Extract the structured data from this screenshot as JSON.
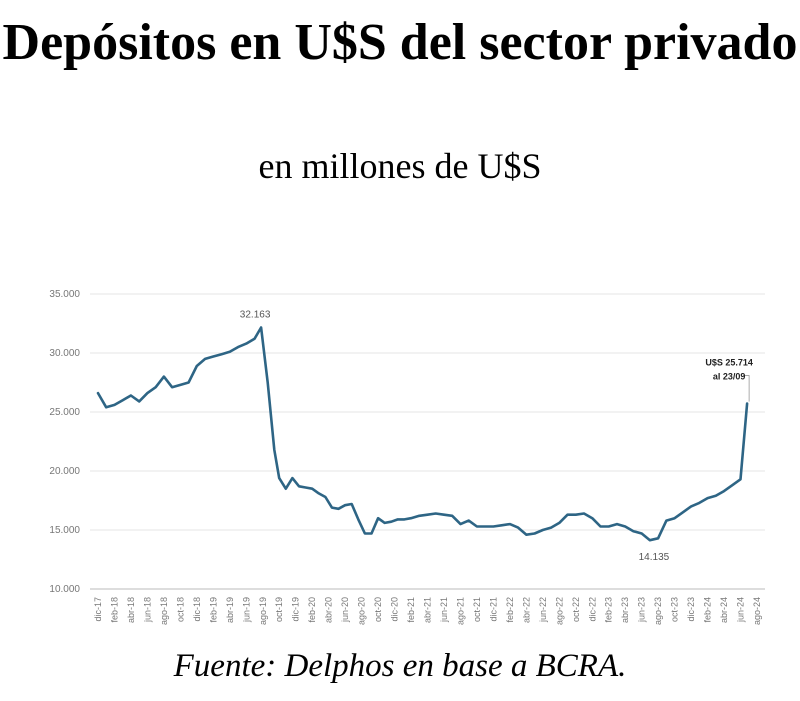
{
  "title": "Depósitos en U$S del sector privado",
  "subtitle": "en millones de U$S",
  "source": "Fuente: Delphos en base a BCRA.",
  "chart_data": {
    "type": "line",
    "title": "Depósitos en U$S del sector privado",
    "subtitle": "en millones de U$S",
    "xlabel": "",
    "ylabel": "",
    "ylim": [
      10000,
      35000
    ],
    "yticks": [
      10000,
      15000,
      20000,
      25000,
      30000,
      35000
    ],
    "ytick_labels": [
      "10.000",
      "15.000",
      "20.000",
      "25.000",
      "30.000",
      "35.000"
    ],
    "xtick_labels": [
      "dic-17",
      "feb-18",
      "abr-18",
      "jun-18",
      "ago-18",
      "oct-18",
      "dic-18",
      "feb-19",
      "abr-19",
      "jun-19",
      "ago-19",
      "oct-19",
      "dic-19",
      "feb-20",
      "abr-20",
      "jun-20",
      "ago-20",
      "oct-20",
      "dic-20",
      "feb-21",
      "abr-21",
      "jun-21",
      "ago-21",
      "oct-21",
      "dic-21",
      "feb-22",
      "abr-22",
      "jun-22",
      "ago-22",
      "oct-22",
      "dic-22",
      "feb-23",
      "abr-23",
      "jun-23",
      "ago-23",
      "oct-23",
      "dic-23",
      "feb-24",
      "abr-24",
      "jun-24",
      "ago-24"
    ],
    "grid": "horizontal",
    "line_color": "#2e6585",
    "series": [
      {
        "name": "",
        "points": [
          [
            0,
            26600
          ],
          [
            0.5,
            25400
          ],
          [
            1,
            25600
          ],
          [
            1.5,
            26000
          ],
          [
            2,
            26400
          ],
          [
            2.5,
            25900
          ],
          [
            3,
            26600
          ],
          [
            3.5,
            27100
          ],
          [
            4,
            28000
          ],
          [
            4.5,
            27100
          ],
          [
            5,
            27300
          ],
          [
            5.5,
            27500
          ],
          [
            6,
            28900
          ],
          [
            6.5,
            29500
          ],
          [
            7,
            29700
          ],
          [
            7.5,
            29900
          ],
          [
            8,
            30100
          ],
          [
            8.5,
            30500
          ],
          [
            9,
            30800
          ],
          [
            9.5,
            31200
          ],
          [
            9.9,
            32163
          ],
          [
            10.3,
            27500
          ],
          [
            10.7,
            21800
          ],
          [
            11,
            19400
          ],
          [
            11.4,
            18500
          ],
          [
            11.8,
            19400
          ],
          [
            12.2,
            18700
          ],
          [
            12.6,
            18600
          ],
          [
            13,
            18500
          ],
          [
            13.4,
            18100
          ],
          [
            13.8,
            17800
          ],
          [
            14.2,
            16900
          ],
          [
            14.6,
            16800
          ],
          [
            15,
            17100
          ],
          [
            15.4,
            17200
          ],
          [
            15.8,
            15900
          ],
          [
            16.2,
            14700
          ],
          [
            16.6,
            14700
          ],
          [
            17,
            16000
          ],
          [
            17.4,
            15600
          ],
          [
            17.8,
            15700
          ],
          [
            18.2,
            15900
          ],
          [
            18.6,
            15900
          ],
          [
            19,
            16000
          ],
          [
            19.5,
            16200
          ],
          [
            20,
            16300
          ],
          [
            20.5,
            16400
          ],
          [
            21,
            16300
          ],
          [
            21.5,
            16200
          ],
          [
            22,
            15500
          ],
          [
            22.5,
            15800
          ],
          [
            23,
            15300
          ],
          [
            23.5,
            15300
          ],
          [
            24,
            15300
          ],
          [
            24.5,
            15400
          ],
          [
            25,
            15500
          ],
          [
            25.5,
            15200
          ],
          [
            26,
            14600
          ],
          [
            26.5,
            14700
          ],
          [
            27,
            15000
          ],
          [
            27.5,
            15200
          ],
          [
            28,
            15600
          ],
          [
            28.5,
            16300
          ],
          [
            29,
            16300
          ],
          [
            29.5,
            16400
          ],
          [
            30,
            16000
          ],
          [
            30.5,
            15300
          ],
          [
            31,
            15300
          ],
          [
            31.5,
            15500
          ],
          [
            32,
            15300
          ],
          [
            32.5,
            14900
          ],
          [
            33,
            14700
          ],
          [
            33.5,
            14135
          ],
          [
            34,
            14300
          ],
          [
            34.5,
            15800
          ],
          [
            35,
            16000
          ],
          [
            35.5,
            16500
          ],
          [
            36,
            17000
          ],
          [
            36.5,
            17300
          ],
          [
            37,
            17700
          ],
          [
            37.5,
            17900
          ],
          [
            38,
            18300
          ],
          [
            38.5,
            18800
          ],
          [
            39,
            19300
          ],
          [
            39.4,
            25714
          ]
        ]
      }
    ],
    "annotations": [
      {
        "text": "32.163",
        "x": 9.9,
        "y": 32163
      },
      {
        "text": "14.135",
        "x": 33.5,
        "y": 14135
      },
      {
        "text_lines": [
          "U$S 25.714",
          "al 23/09"
        ],
        "x": 39.4,
        "y": 25714
      }
    ]
  }
}
